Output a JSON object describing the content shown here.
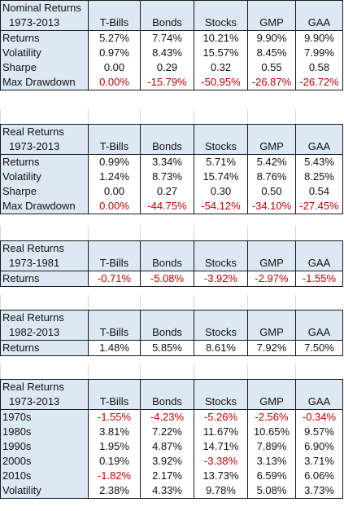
{
  "sheet": {
    "columns": [
      "T-Bills",
      "Bonds",
      "Stocks",
      "GMP",
      "GAA"
    ],
    "blocks": [
      {
        "title": "Nominal Returns",
        "period": "1973-2013",
        "rows": [
          {
            "label": "Returns",
            "values": [
              "5.27%",
              "7.74%",
              "10.21%",
              "9.90%",
              "9.90%"
            ]
          },
          {
            "label": "Volatility",
            "values": [
              "0.97%",
              "8.43%",
              "15.57%",
              "8.45%",
              "7.99%"
            ]
          },
          {
            "label": "Sharpe",
            "values": [
              "0.00",
              "0.29",
              "0.32",
              "0.55",
              "0.58"
            ]
          },
          {
            "label": "Max Drawdown",
            "values": [
              "0.00%",
              "-15.79%",
              "-50.95%",
              "-26.87%",
              "-26.72%"
            ],
            "red": [
              true,
              true,
              true,
              true,
              true
            ]
          }
        ]
      },
      {
        "title": "Real Returns",
        "period": "1973-2013",
        "rows": [
          {
            "label": "Returns",
            "values": [
              "0.99%",
              "3.34%",
              "5.71%",
              "5.42%",
              "5.43%"
            ]
          },
          {
            "label": "Volatility",
            "values": [
              "1.24%",
              "8.73%",
              "15.74%",
              "8.76%",
              "8.25%"
            ]
          },
          {
            "label": "Sharpe",
            "values": [
              "0.00",
              "0.27",
              "0.30",
              "0.50",
              "0.54"
            ]
          },
          {
            "label": "Max Drawdown",
            "values": [
              "0.00%",
              "-44.75%",
              "-54.12%",
              "-34.10%",
              "-27.45%"
            ],
            "red": [
              true,
              true,
              true,
              true,
              true
            ]
          }
        ]
      },
      {
        "title": "Real Returns",
        "period": "1973-1981",
        "rows": [
          {
            "label": "Returns",
            "values": [
              "-0.71%",
              "-5.08%",
              "-3.92%",
              "-2.97%",
              "-1.55%"
            ],
            "red": [
              true,
              true,
              true,
              true,
              true
            ]
          }
        ]
      },
      {
        "title": "Real Returns",
        "period": "1982-2013",
        "rows": [
          {
            "label": "Returns",
            "values": [
              "1.48%",
              "5.85%",
              "8.61%",
              "7.92%",
              "7.50%"
            ]
          }
        ]
      },
      {
        "title": "Real Returns",
        "period": "1973-2013",
        "rows": [
          {
            "label": "1970s",
            "values": [
              "-1.55%",
              "-4.23%",
              "-5.26%",
              "-2.56%",
              "-0.34%"
            ],
            "red": [
              true,
              true,
              true,
              true,
              true
            ]
          },
          {
            "label": "1980s",
            "values": [
              "3.81%",
              "7.22%",
              "11.67%",
              "10.65%",
              "9.57%"
            ]
          },
          {
            "label": "1990s",
            "values": [
              "1.95%",
              "4.87%",
              "14.71%",
              "7.89%",
              "6.90%"
            ]
          },
          {
            "label": "2000s",
            "values": [
              "0.19%",
              "3.92%",
              "-3.38%",
              "3.13%",
              "3.71%"
            ],
            "red": [
              false,
              false,
              true,
              false,
              false
            ]
          },
          {
            "label": "2010s",
            "values": [
              "-1.82%",
              "2.17%",
              "13.73%",
              "6.59%",
              "6.06%"
            ],
            "red": [
              true,
              false,
              false,
              false,
              false
            ]
          },
          {
            "label": "Volatility",
            "values": [
              "2.38%",
              "4.33%",
              "9.78%",
              "5.08%",
              "3.73%"
            ]
          }
        ]
      }
    ]
  }
}
